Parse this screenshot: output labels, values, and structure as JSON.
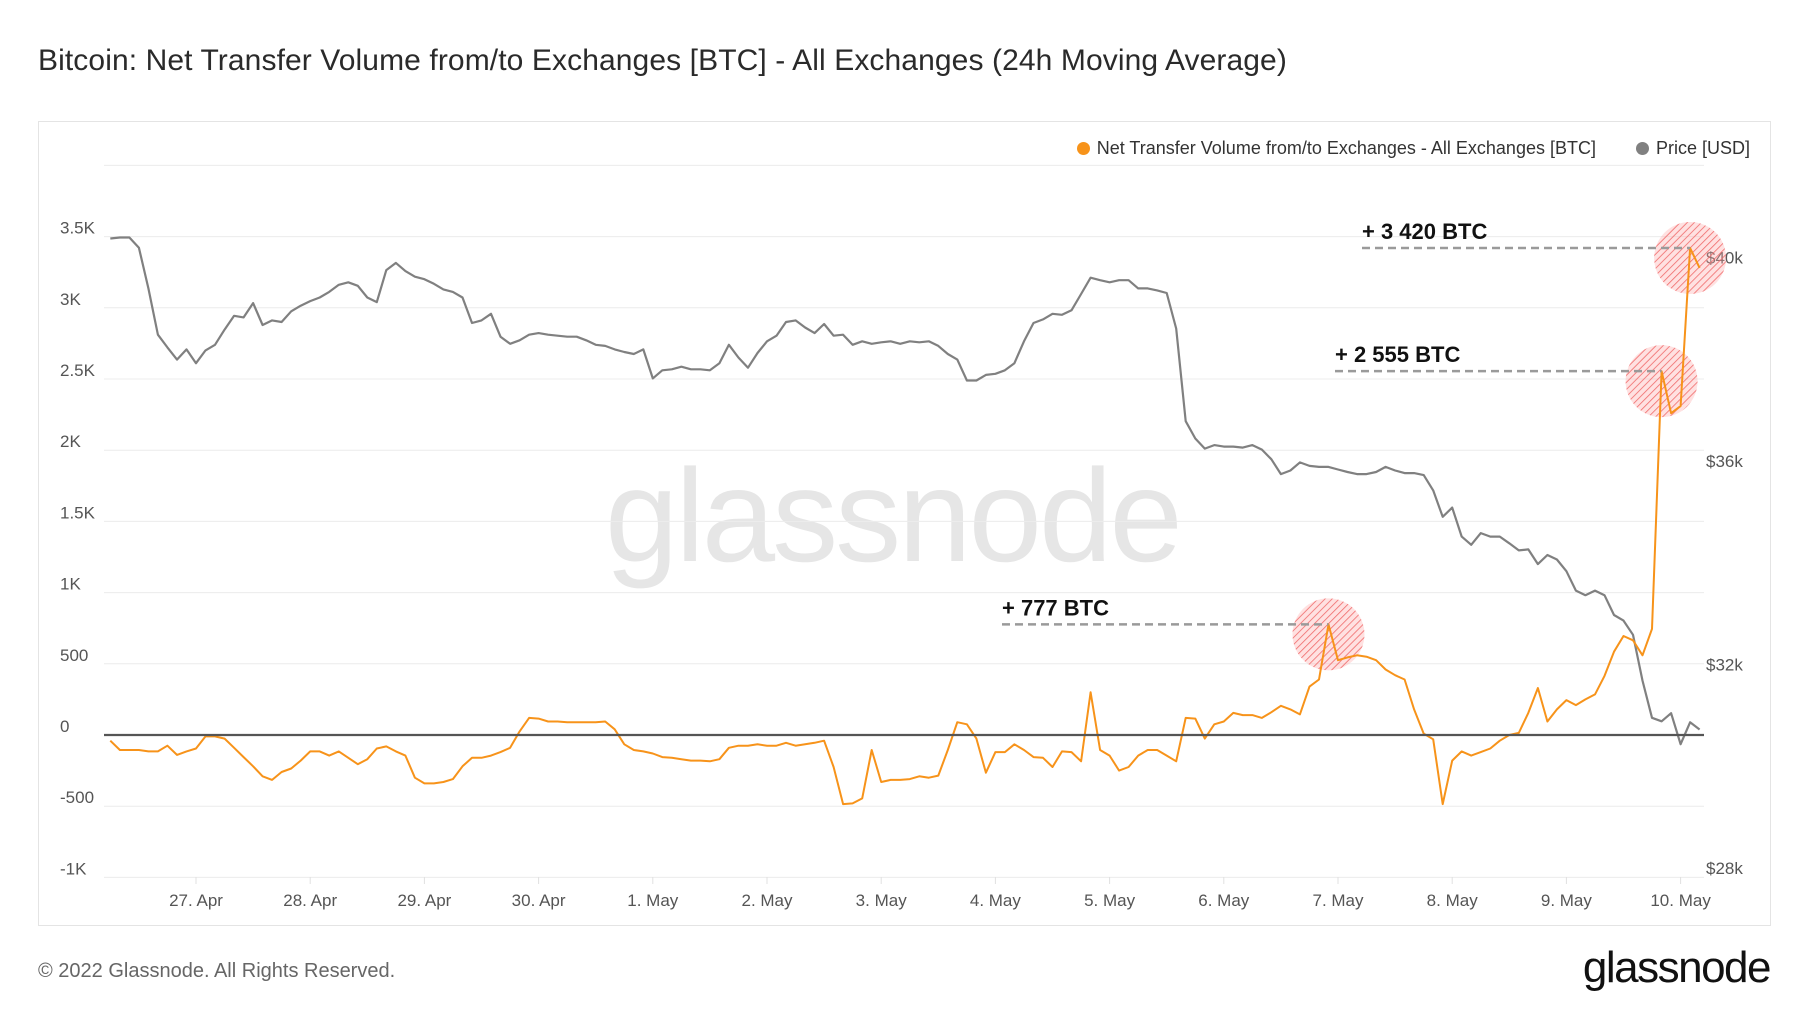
{
  "title": "Bitcoin: Net Transfer Volume from/to Exchanges [BTC] - All Exchanges (24h Moving Average)",
  "legend": [
    {
      "label": "Net Transfer Volume from/to Exchanges - All Exchanges [BTC]",
      "color": "#f7931a"
    },
    {
      "label": "Price [USD]",
      "color": "#808080"
    }
  ],
  "watermark": "glassnode",
  "footer": {
    "copyright": "© 2022 Glassnode. All Rights Reserved.",
    "logo": "glassnode"
  },
  "chart_data": {
    "type": "line",
    "title": "Bitcoin: Net Transfer Volume from/to Exchanges [BTC] - All Exchanges (24h Moving Average)",
    "grid": true,
    "legend_position": "top-right",
    "x_ticks": [
      {
        "date": "2022-04-27",
        "label": "27. Apr"
      },
      {
        "date": "2022-04-28",
        "label": "28. Apr"
      },
      {
        "date": "2022-04-29",
        "label": "29. Apr"
      },
      {
        "date": "2022-04-30",
        "label": "30. Apr"
      },
      {
        "date": "2022-05-01",
        "label": "1. May"
      },
      {
        "date": "2022-05-02",
        "label": "2. May"
      },
      {
        "date": "2022-05-03",
        "label": "3. May"
      },
      {
        "date": "2022-05-04",
        "label": "4. May"
      },
      {
        "date": "2022-05-05",
        "label": "5. May"
      },
      {
        "date": "2022-05-06",
        "label": "6. May"
      },
      {
        "date": "2022-05-07",
        "label": "7. May"
      },
      {
        "date": "2022-05-08",
        "label": "8. May"
      },
      {
        "date": "2022-05-09",
        "label": "9. May"
      },
      {
        "date": "2022-05-10",
        "label": "10. May"
      }
    ],
    "y_left": {
      "lim": [
        -1000,
        4000
      ],
      "ticks": [
        {
          "value": -1000,
          "label": "-1K"
        },
        {
          "value": -500,
          "label": "-500"
        },
        {
          "value": 0,
          "label": "0"
        },
        {
          "value": 500,
          "label": "500"
        },
        {
          "value": 1000,
          "label": "1K"
        },
        {
          "value": 1500,
          "label": "1.5K"
        },
        {
          "value": 2000,
          "label": "2K"
        },
        {
          "value": 2500,
          "label": "2.5K"
        },
        {
          "value": 3000,
          "label": "3K"
        },
        {
          "value": 3500,
          "label": "3.5K"
        }
      ]
    },
    "y_right": {
      "lim": [
        28000,
        42000
      ],
      "ticks": [
        {
          "value": 28000,
          "label": "$28k"
        },
        {
          "value": 32000,
          "label": "$32k"
        },
        {
          "value": 36000,
          "label": "$36k"
        },
        {
          "value": 40000,
          "label": "$40k"
        }
      ]
    },
    "x": [
      "2022-04-26 06:00",
      "2022-04-26 08:00",
      "2022-04-26 10:00",
      "2022-04-26 12:00",
      "2022-04-26 14:00",
      "2022-04-26 16:00",
      "2022-04-26 18:00",
      "2022-04-26 20:00",
      "2022-04-26 22:00",
      "2022-04-27 00:00",
      "2022-04-27 02:00",
      "2022-04-27 04:00",
      "2022-04-27 06:00",
      "2022-04-27 08:00",
      "2022-04-27 10:00",
      "2022-04-27 12:00",
      "2022-04-27 14:00",
      "2022-04-27 16:00",
      "2022-04-27 18:00",
      "2022-04-27 20:00",
      "2022-04-27 22:00",
      "2022-04-28 00:00",
      "2022-04-28 02:00",
      "2022-04-28 04:00",
      "2022-04-28 06:00",
      "2022-04-28 08:00",
      "2022-04-28 10:00",
      "2022-04-28 12:00",
      "2022-04-28 14:00",
      "2022-04-28 16:00",
      "2022-04-28 18:00",
      "2022-04-28 20:00",
      "2022-04-28 22:00",
      "2022-04-29 00:00",
      "2022-04-29 02:00",
      "2022-04-29 04:00",
      "2022-04-29 06:00",
      "2022-04-29 08:00",
      "2022-04-29 10:00",
      "2022-04-29 12:00",
      "2022-04-29 14:00",
      "2022-04-29 16:00",
      "2022-04-29 18:00",
      "2022-04-29 20:00",
      "2022-04-29 22:00",
      "2022-04-30 00:00",
      "2022-04-30 02:00",
      "2022-04-30 04:00",
      "2022-04-30 06:00",
      "2022-04-30 08:00",
      "2022-04-30 10:00",
      "2022-04-30 12:00",
      "2022-04-30 14:00",
      "2022-04-30 16:00",
      "2022-04-30 18:00",
      "2022-04-30 20:00",
      "2022-04-30 22:00",
      "2022-05-01 00:00",
      "2022-05-01 02:00",
      "2022-05-01 04:00",
      "2022-05-01 06:00",
      "2022-05-01 08:00",
      "2022-05-01 10:00",
      "2022-05-01 12:00",
      "2022-05-01 14:00",
      "2022-05-01 16:00",
      "2022-05-01 18:00",
      "2022-05-01 20:00",
      "2022-05-01 22:00",
      "2022-05-02 00:00",
      "2022-05-02 02:00",
      "2022-05-02 04:00",
      "2022-05-02 06:00",
      "2022-05-02 08:00",
      "2022-05-02 10:00",
      "2022-05-02 12:00",
      "2022-05-02 14:00",
      "2022-05-02 16:00",
      "2022-05-02 18:00",
      "2022-05-02 20:00",
      "2022-05-02 22:00",
      "2022-05-03 00:00",
      "2022-05-03 02:00",
      "2022-05-03 04:00",
      "2022-05-03 06:00",
      "2022-05-03 08:00",
      "2022-05-03 10:00",
      "2022-05-03 12:00",
      "2022-05-03 14:00",
      "2022-05-03 16:00",
      "2022-05-03 18:00",
      "2022-05-03 20:00",
      "2022-05-03 22:00",
      "2022-05-04 00:00",
      "2022-05-04 02:00",
      "2022-05-04 04:00",
      "2022-05-04 06:00",
      "2022-05-04 08:00",
      "2022-05-04 10:00",
      "2022-05-04 12:00",
      "2022-05-04 14:00",
      "2022-05-04 16:00",
      "2022-05-04 18:00",
      "2022-05-04 20:00",
      "2022-05-04 22:00",
      "2022-05-05 00:00",
      "2022-05-05 02:00",
      "2022-05-05 04:00",
      "2022-05-05 06:00",
      "2022-05-05 08:00",
      "2022-05-05 10:00",
      "2022-05-05 12:00",
      "2022-05-05 14:00",
      "2022-05-05 16:00",
      "2022-05-05 18:00",
      "2022-05-05 20:00",
      "2022-05-05 22:00",
      "2022-05-06 00:00",
      "2022-05-06 02:00",
      "2022-05-06 04:00",
      "2022-05-06 06:00",
      "2022-05-06 08:00",
      "2022-05-06 10:00",
      "2022-05-06 12:00",
      "2022-05-06 14:00",
      "2022-05-06 16:00",
      "2022-05-06 18:00",
      "2022-05-06 20:00",
      "2022-05-06 22:00",
      "2022-05-07 00:00",
      "2022-05-07 02:00",
      "2022-05-07 04:00",
      "2022-05-07 06:00",
      "2022-05-07 08:00",
      "2022-05-07 10:00",
      "2022-05-07 12:00",
      "2022-05-07 14:00",
      "2022-05-07 16:00",
      "2022-05-07 18:00",
      "2022-05-07 20:00",
      "2022-05-07 22:00",
      "2022-05-08 00:00",
      "2022-05-08 02:00",
      "2022-05-08 04:00",
      "2022-05-08 06:00",
      "2022-05-08 08:00",
      "2022-05-08 10:00",
      "2022-05-08 12:00",
      "2022-05-08 14:00",
      "2022-05-08 16:00",
      "2022-05-08 18:00",
      "2022-05-08 20:00",
      "2022-05-08 22:00",
      "2022-05-09 00:00",
      "2022-05-09 02:00",
      "2022-05-09 04:00",
      "2022-05-09 06:00",
      "2022-05-09 08:00",
      "2022-05-09 10:00",
      "2022-05-09 12:00",
      "2022-05-09 14:00",
      "2022-05-09 16:00",
      "2022-05-09 18:00",
      "2022-05-09 20:00",
      "2022-05-09 22:00",
      "2022-05-10 00:00",
      "2022-05-10 02:00",
      "2022-05-10 04:00"
    ],
    "series": [
      {
        "name": "Net Transfer Volume from/to Exchanges - All Exchanges [BTC]",
        "axis": "left",
        "color": "#f7931a",
        "values": [
          -40,
          -105,
          -105,
          -105,
          -115,
          -115,
          -75,
          -140,
          -115,
          -95,
          -10,
          -10,
          -25,
          -90,
          -155,
          -220,
          -290,
          -315,
          -260,
          -235,
          -180,
          -115,
          -115,
          -145,
          -115,
          -160,
          -205,
          -170,
          -95,
          -80,
          -115,
          -145,
          -300,
          -340,
          -340,
          -330,
          -310,
          -220,
          -160,
          -160,
          -145,
          -120,
          -90,
          25,
          120,
          115,
          95,
          95,
          90,
          90,
          90,
          90,
          95,
          40,
          -65,
          -105,
          -115,
          -130,
          -155,
          -160,
          -170,
          -180,
          -180,
          -185,
          -170,
          -90,
          -75,
          -75,
          -65,
          -75,
          -75,
          -55,
          -75,
          -65,
          -55,
          -40,
          -225,
          -485,
          -480,
          -445,
          -105,
          -330,
          -315,
          -315,
          -310,
          -290,
          -300,
          -285,
          -105,
          90,
          75,
          -25,
          -265,
          -120,
          -120,
          -65,
          -105,
          -155,
          -160,
          -225,
          -115,
          -120,
          -185,
          300,
          -105,
          -145,
          -250,
          -225,
          -145,
          -105,
          -105,
          -145,
          -185,
          120,
          115,
          -25,
          75,
          95,
          155,
          140,
          140,
          120,
          160,
          205,
          180,
          145,
          340,
          390,
          777,
          525,
          545,
          560,
          550,
          525,
          460,
          420,
          390,
          180,
          10,
          -30,
          -485,
          -180,
          -115,
          -145,
          -120,
          -95,
          -40,
          0,
          15,
          155,
          330,
          95,
          180,
          245,
          210,
          250,
          285,
          415,
          585,
          695,
          665,
          560,
          745,
          2555,
          2260,
          2310,
          3420,
          3280
        ]
      },
      {
        "name": "Price [USD]",
        "axis": "right",
        "color": "#808080",
        "values": [
          40550,
          40570,
          40570,
          40370,
          39570,
          38660,
          38410,
          38170,
          38370,
          38100,
          38350,
          38460,
          38760,
          39030,
          39000,
          39280,
          38850,
          38940,
          38910,
          39120,
          39230,
          39320,
          39390,
          39500,
          39640,
          39690,
          39620,
          39390,
          39300,
          39930,
          40070,
          39910,
          39800,
          39750,
          39660,
          39550,
          39500,
          39390,
          38890,
          38940,
          39070,
          38620,
          38480,
          38550,
          38660,
          38690,
          38660,
          38640,
          38620,
          38620,
          38550,
          38460,
          38440,
          38370,
          38320,
          38280,
          38370,
          37800,
          37960,
          37980,
          38030,
          37980,
          37980,
          37960,
          38100,
          38460,
          38210,
          38010,
          38300,
          38530,
          38640,
          38910,
          38940,
          38800,
          38690,
          38870,
          38640,
          38660,
          38460,
          38530,
          38480,
          38510,
          38530,
          38480,
          38530,
          38510,
          38530,
          38440,
          38280,
          38170,
          37760,
          37760,
          37870,
          37890,
          37960,
          38100,
          38530,
          38890,
          38960,
          39070,
          39050,
          39140,
          39460,
          39780,
          39730,
          39690,
          39730,
          39730,
          39570,
          39570,
          39530,
          39480,
          38780,
          36960,
          36620,
          36420,
          36490,
          36460,
          36460,
          36440,
          36490,
          36400,
          36210,
          35920,
          35990,
          36150,
          36080,
          36060,
          36060,
          36010,
          35960,
          35920,
          35920,
          35960,
          36060,
          35990,
          35940,
          35940,
          35900,
          35600,
          35080,
          35260,
          34690,
          34530,
          34760,
          34690,
          34690,
          34560,
          34420,
          34440,
          34150,
          34330,
          34240,
          34010,
          33630,
          33540,
          33630,
          33540,
          33150,
          33040,
          32760,
          31860,
          31130,
          31060,
          31220,
          30610,
          31040,
          30900
        ]
      }
    ],
    "annotations": [
      {
        "label": "+ 777 BTC",
        "x": "2022-05-06 22:00",
        "value": 777,
        "highlight_color": "#f05050"
      },
      {
        "label": "+ 2 555 BTC",
        "x": "2022-05-09 20:00",
        "value": 2555,
        "highlight_color": "#f05050"
      },
      {
        "label": "+ 3 420 BTC",
        "x": "2022-05-10 02:00",
        "value": 3420,
        "highlight_color": "#f05050"
      }
    ]
  }
}
